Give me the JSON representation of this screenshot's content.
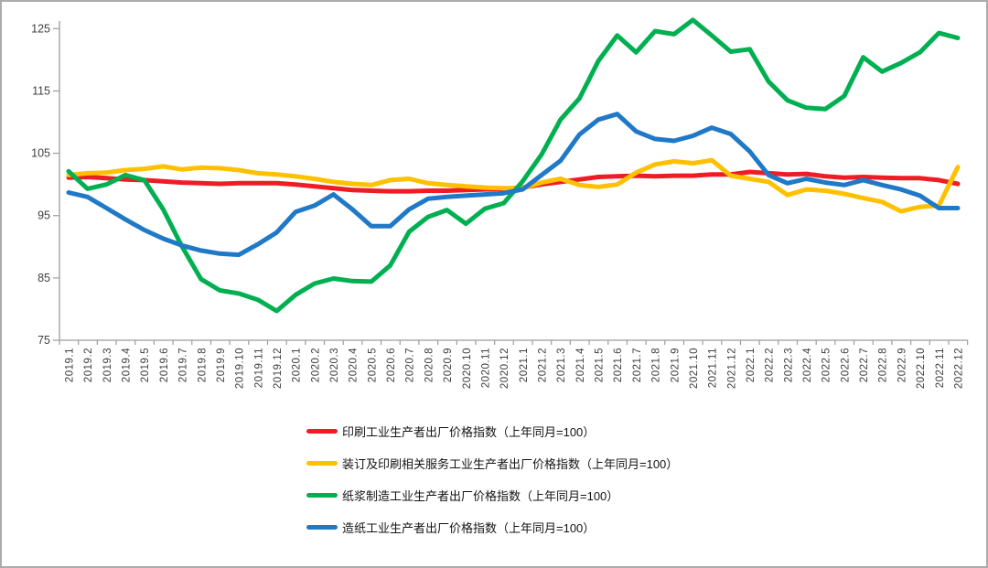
{
  "page": {
    "background": "#ffffff",
    "border_color": "#ababab"
  },
  "chart_data": {
    "type": "line",
    "title": "",
    "xlabel": "",
    "ylabel": "",
    "ylim": [
      75,
      125
    ],
    "y_ticks": [
      125,
      115,
      105,
      95,
      85,
      75
    ],
    "grid": false,
    "legend_position": "bottom-left-stacked",
    "categories": [
      "2019.1",
      "2019.2",
      "2019.3",
      "2019.4",
      "2019.5",
      "2019.6",
      "2019.7",
      "2019.8",
      "2019.9",
      "2019.10",
      "2019.11",
      "2019.12",
      "2020.1",
      "2020.2",
      "2020.3",
      "2020.4",
      "2020.5",
      "2020.6",
      "2020.7",
      "2020.8",
      "2020.9",
      "2020.10",
      "2020.11",
      "2020.12",
      "2021.1",
      "2021.2",
      "2021.3",
      "2021.4",
      "2021.5",
      "2021.6",
      "2021.7",
      "2021.8",
      "2021.9",
      "2021.10",
      "2021.11",
      "2021.12",
      "2022.1",
      "2022.2",
      "2022.3",
      "2022.4",
      "2022.5",
      "2022.6",
      "2022.7",
      "2022.8",
      "2022.9",
      "2022.10",
      "2022.11",
      "2022.12"
    ],
    "series": [
      {
        "key": "printing",
        "name": "印刷工业生产者出厂价格指数（上年同月=100）",
        "color": "#ee1c25",
        "values": [
          101.1,
          101.2,
          101.0,
          100.8,
          100.7,
          100.5,
          100.3,
          100.2,
          100.1,
          100.2,
          100.2,
          100.2,
          100.0,
          99.7,
          99.4,
          99.1,
          99.0,
          98.9,
          98.9,
          99.0,
          99.0,
          99.1,
          99.2,
          99.3,
          99.5,
          100.0,
          100.4,
          100.8,
          101.2,
          101.3,
          101.4,
          101.3,
          101.4,
          101.4,
          101.6,
          101.6,
          102.0,
          101.8,
          101.6,
          101.7,
          101.3,
          101.1,
          101.2,
          101.1,
          101.0,
          101.0,
          100.7,
          100.1
        ]
      },
      {
        "key": "binding-services",
        "name": "装订及印刷相关服务工业生产者出厂价格指数（上年同月=100）",
        "color": "#ffc000",
        "values": [
          101.5,
          101.8,
          101.9,
          102.3,
          102.5,
          102.9,
          102.4,
          102.7,
          102.6,
          102.3,
          101.8,
          101.6,
          101.3,
          100.9,
          100.4,
          100.1,
          99.9,
          100.7,
          100.9,
          100.2,
          99.9,
          99.7,
          99.5,
          99.4,
          99.4,
          100.3,
          100.9,
          99.9,
          99.6,
          100.0,
          101.9,
          103.2,
          103.7,
          103.4,
          103.9,
          101.4,
          100.9,
          100.4,
          98.3,
          99.2,
          99.0,
          98.5,
          97.8,
          97.2,
          95.7,
          96.4,
          96.6,
          102.8
        ]
      },
      {
        "key": "pulp-manufacturing",
        "name": "纸浆制造工业生产者出厂价格指数（上年同月=100）",
        "color": "#00b050",
        "values": [
          102.1,
          99.3,
          100.0,
          101.5,
          100.7,
          96.0,
          90.0,
          84.8,
          83.0,
          82.5,
          81.5,
          79.7,
          82.3,
          84.1,
          84.9,
          84.5,
          84.4,
          87.0,
          92.4,
          94.8,
          95.9,
          93.7,
          96.1,
          97.0,
          100.5,
          104.8,
          110.4,
          113.8,
          119.8,
          123.9,
          121.2,
          124.6,
          124.1,
          126.4,
          123.9,
          121.3,
          121.7,
          116.5,
          113.5,
          112.3,
          112.1,
          114.2,
          120.4,
          118.1,
          119.5,
          121.2,
          124.3,
          123.5
        ]
      },
      {
        "key": "papermaking",
        "name": "造纸工业生产者出厂价格指数（上年同月=100）",
        "color": "#2079c7",
        "values": [
          98.7,
          98.0,
          96.2,
          94.4,
          92.7,
          91.3,
          90.2,
          89.4,
          88.9,
          88.7,
          90.4,
          92.3,
          95.6,
          96.6,
          98.4,
          96.0,
          93.3,
          93.3,
          96.0,
          97.7,
          98.0,
          98.2,
          98.4,
          98.6,
          99.2,
          101.5,
          103.8,
          108.0,
          110.4,
          111.3,
          108.5,
          107.3,
          107.0,
          107.8,
          109.1,
          108.1,
          105.3,
          101.5,
          100.2,
          100.9,
          100.3,
          99.9,
          100.7,
          99.9,
          99.2,
          98.2,
          96.2,
          96.2
        ]
      }
    ]
  }
}
